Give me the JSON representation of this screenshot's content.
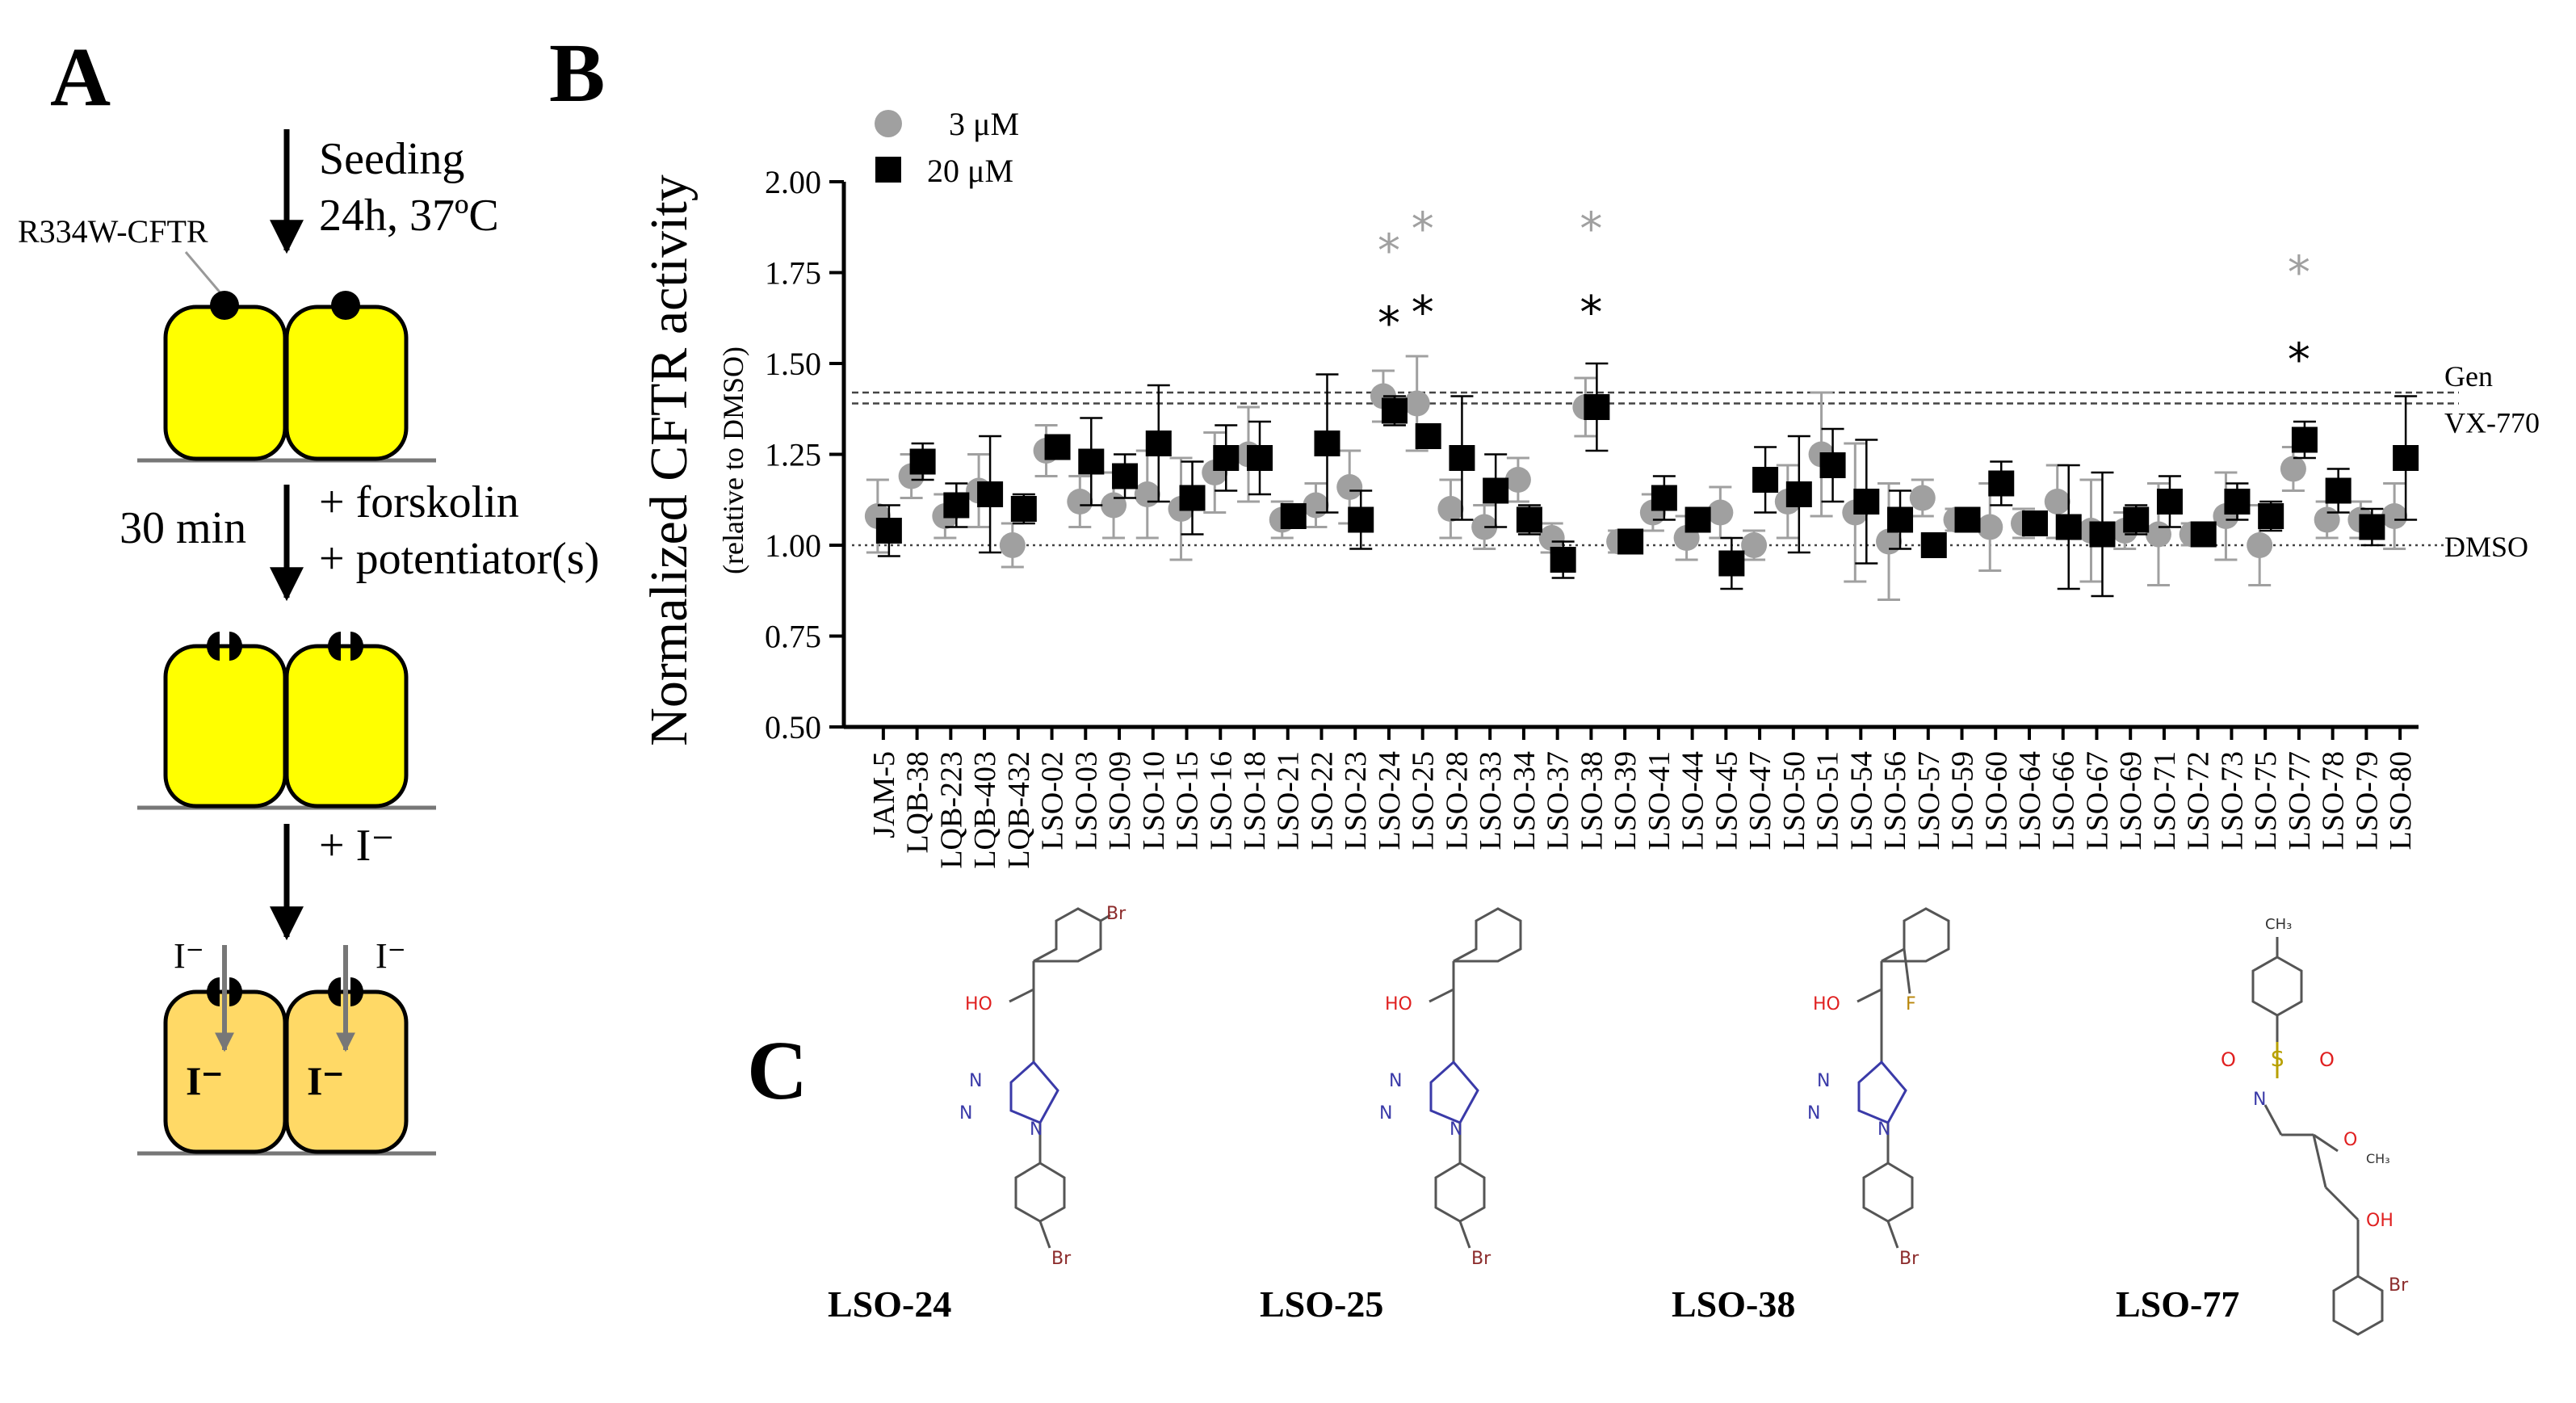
{
  "panel_a": {
    "letter": "A",
    "step1": {
      "line1": "Seeding",
      "line2": "24h, 37ºC"
    },
    "protein_label": "R334W-CFTR",
    "step2": {
      "time": "30 min",
      "line1": "+ forskolin",
      "line2": "+ potentiator(s)"
    },
    "step3": {
      "label": "+ I⁻"
    },
    "ion_outside": "I⁻",
    "ion_inside": "I⁻",
    "colors": {
      "cell": "#ffff00",
      "cell_loaded": "#ffd966",
      "arrow": "#777777"
    }
  },
  "panel_b": {
    "letter": "B"
  },
  "panel_c": {
    "letter": "C",
    "compounds": [
      {
        "name": "LSO-24",
        "labels": {
          "oh": "HO",
          "sub": "Br",
          "n1": "N",
          "n2": "N",
          "n3": "N",
          "br2": "Br"
        }
      },
      {
        "name": "LSO-25",
        "labels": {
          "oh": "HO",
          "n1": "N",
          "n2": "N",
          "n3": "N",
          "br2": "Br"
        }
      },
      {
        "name": "LSO-38",
        "labels": {
          "oh": "HO",
          "sub": "F",
          "n1": "N",
          "n2": "N",
          "n3": "N",
          "br2": "Br"
        }
      },
      {
        "name": "LSO-77",
        "labels": {
          "ch3": "CH₃",
          "s": "S",
          "o1": "O",
          "o2": "O",
          "n": "N",
          "o3": "O",
          "ch3b": "CH₃",
          "oh": "OH",
          "br": "Br"
        }
      }
    ],
    "colors": {
      "oxygen": "#e02020",
      "nitrogen": "#3a3aa8",
      "bromine": "#8b2a2a",
      "fluorine": "#b8860b",
      "sulfur": "#b8a000"
    }
  },
  "chart_data": {
    "type": "scatter",
    "title": "",
    "ylabel": "Normalized CFTR activity",
    "ylabel_sub": "(relative to DMSO)",
    "ylim": [
      0.5,
      2.0
    ],
    "yticks": [
      "0.50",
      "0.75",
      "1.00",
      "1.25",
      "1.50",
      "1.75",
      "2.00"
    ],
    "categories": [
      "JAM-5",
      "LQB-38",
      "LQB-223",
      "LQB-403",
      "LQB-432",
      "LSO-02",
      "LSO-03",
      "LSO-09",
      "LSO-10",
      "LSO-15",
      "LSO-16",
      "LSO-18",
      "LSO-21",
      "LSO-22",
      "LSO-23",
      "LSO-24",
      "LSO-25",
      "LSO-28",
      "LSO-33",
      "LSO-34",
      "LSO-37",
      "LSO-38",
      "LSO-39",
      "LSO-41",
      "LSO-44",
      "LSO-45",
      "LSO-47",
      "LSO-50",
      "LSO-51",
      "LSO-54",
      "LSO-56",
      "LSO-57",
      "LSO-59",
      "LSO-60",
      "LSO-64",
      "LSO-66",
      "LSO-67",
      "LSO-69",
      "LSO-71",
      "LSO-72",
      "LSO-73",
      "LSO-75",
      "LSO-77",
      "LSO-78",
      "LSO-79",
      "LSO-80"
    ],
    "series": [
      {
        "name": "3 μM",
        "marker": "circle",
        "color": "#a0a0a0",
        "values": [
          1.08,
          1.19,
          1.08,
          1.15,
          1.0,
          1.26,
          1.12,
          1.11,
          1.14,
          1.1,
          1.2,
          1.25,
          1.07,
          1.11,
          1.16,
          1.41,
          1.39,
          1.1,
          1.05,
          1.18,
          1.02,
          1.38,
          1.01,
          1.09,
          1.02,
          1.09,
          1.0,
          1.12,
          1.25,
          1.09,
          1.01,
          1.13,
          1.07,
          1.05,
          1.06,
          1.12,
          1.04,
          1.04,
          1.03,
          1.03,
          1.08,
          1.0,
          1.21,
          1.07,
          1.07,
          1.08
        ],
        "errors": [
          0.1,
          0.06,
          0.06,
          0.1,
          0.06,
          0.07,
          0.07,
          0.09,
          0.12,
          0.14,
          0.11,
          0.13,
          0.05,
          0.06,
          0.1,
          0.07,
          0.13,
          0.08,
          0.06,
          0.06,
          0.04,
          0.08,
          0.03,
          0.05,
          0.06,
          0.07,
          0.04,
          0.1,
          0.17,
          0.19,
          0.16,
          0.05,
          0.03,
          0.12,
          0.04,
          0.1,
          0.14,
          0.05,
          0.14,
          0.03,
          0.12,
          0.11,
          0.06,
          0.05,
          0.05,
          0.09
        ],
        "significant": [
          "LSO-24",
          "LSO-25",
          "LSO-38",
          "LSO-77"
        ],
        "sig_y": [
          1.83,
          1.89,
          1.89,
          1.77
        ]
      },
      {
        "name": "20 μM",
        "marker": "square",
        "color": "#000000",
        "values": [
          1.04,
          1.23,
          1.11,
          1.14,
          1.1,
          1.27,
          1.23,
          1.19,
          1.28,
          1.13,
          1.24,
          1.24,
          1.08,
          1.28,
          1.07,
          1.37,
          1.3,
          1.24,
          1.15,
          1.07,
          0.96,
          1.38,
          1.01,
          1.13,
          1.07,
          0.95,
          1.18,
          1.14,
          1.22,
          1.12,
          1.07,
          1.0,
          1.07,
          1.17,
          1.06,
          1.05,
          1.03,
          1.07,
          1.12,
          1.03,
          1.12,
          1.08,
          1.29,
          1.15,
          1.05,
          1.24
        ],
        "errors": [
          0.07,
          0.05,
          0.06,
          0.16,
          0.04,
          0.03,
          0.12,
          0.06,
          0.16,
          0.1,
          0.09,
          0.1,
          0.03,
          0.19,
          0.08,
          0.04,
          0.03,
          0.17,
          0.1,
          0.04,
          0.05,
          0.12,
          0.03,
          0.06,
          0.03,
          0.07,
          0.09,
          0.16,
          0.1,
          0.17,
          0.08,
          0.03,
          0.02,
          0.06,
          0.03,
          0.17,
          0.17,
          0.04,
          0.07,
          0.03,
          0.05,
          0.04,
          0.05,
          0.06,
          0.05,
          0.17
        ],
        "significant": [
          "LSO-24",
          "LSO-25",
          "LSO-38",
          "LSO-77"
        ],
        "sig_y": [
          1.63,
          1.66,
          1.66,
          1.53
        ]
      }
    ],
    "reference_lines": [
      {
        "label": "Gen",
        "y": 1.42,
        "style": "dashed"
      },
      {
        "label": "VX-770",
        "y": 1.39,
        "style": "dashed"
      },
      {
        "label": "DMSO",
        "y": 1.0,
        "style": "dotted"
      }
    ],
    "sig_symbol": "*",
    "legend": "top-left"
  }
}
